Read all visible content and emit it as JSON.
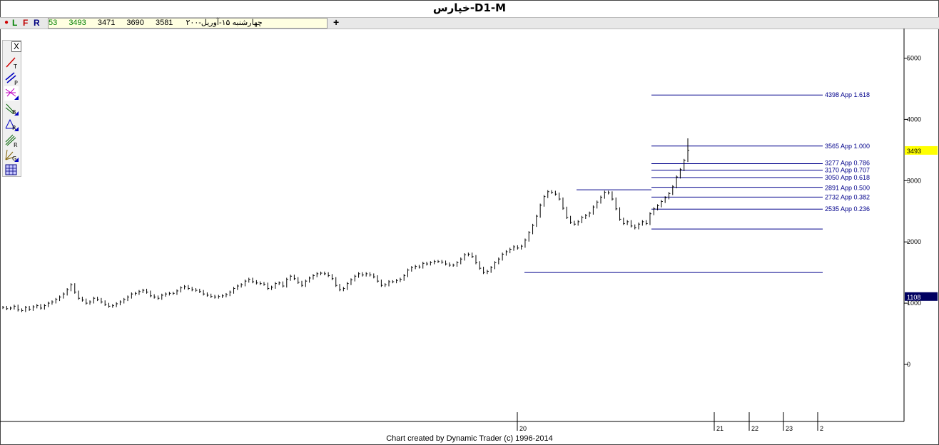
{
  "window": {
    "title": "خپارس-D1-M"
  },
  "infobar": {
    "btn_l": "L",
    "btn_f": "F",
    "btn_r": "R",
    "date": "چهارشنبه ۱۵-آوریل-۲۰۰",
    "open": "3581",
    "high": "3690",
    "low": "3471",
    "close": "3493",
    "volume": "53",
    "add": "+"
  },
  "toolbar": {
    "close_label": "X",
    "tools": [
      "trendline-tool-icon",
      "parallel-tool-icon",
      "p-tool-icon",
      "b-tool-icon",
      "r-tool-icon",
      "retracement-tool-icon",
      "gann-tool-icon",
      "pt-tool-icon"
    ]
  },
  "footer": {
    "credit": "Chart created by Dynamic Trader  (c) 1996-2014"
  },
  "colors": {
    "level_line": "#00008b",
    "price_bar": "#000000",
    "current_price_bg": "#ffff00",
    "marker_price_bg": "#000060"
  },
  "chart_data": {
    "type": "bar",
    "title": "خپارس-D1-M",
    "y_ticks": [
      5000,
      4000,
      3000,
      2000,
      1000,
      0
    ],
    "ylim": [
      -900,
      5500
    ],
    "x_ticks": [
      "20",
      "21",
      "22",
      "23",
      "2"
    ],
    "current_price": "3493",
    "marker_price": "1108",
    "levels": [
      {
        "value": 4398,
        "label": "4398 App 1.618"
      },
      {
        "value": 3565,
        "label": "3565 App 1.000"
      },
      {
        "value": 3277,
        "label": "3277 App 0.786"
      },
      {
        "value": 3170,
        "label": "3170 App 0.707"
      },
      {
        "value": 3050,
        "label": "3050 App 0.618"
      },
      {
        "value": 2891,
        "label": "2891 App 0.500"
      },
      {
        "value": 2732,
        "label": "2732 App 0.382"
      },
      {
        "value": 2535,
        "label": "2535 App 0.236"
      }
    ],
    "support_lines": [
      {
        "value": 2850
      },
      {
        "value": 2210
      },
      {
        "value": 1500
      }
    ],
    "closes": [
      930,
      910,
      920,
      950,
      890,
      880,
      930,
      900,
      940,
      960,
      920,
      960,
      1000,
      1020,
      1060,
      1100,
      1150,
      1220,
      1300,
      1180,
      1080,
      1050,
      1000,
      1020,
      1080,
      1060,
      1020,
      980,
      950,
      960,
      990,
      1020,
      1060,
      1100,
      1150,
      1160,
      1190,
      1210,
      1180,
      1120,
      1100,
      1080,
      1130,
      1150,
      1160,
      1160,
      1200,
      1250,
      1270,
      1240,
      1220,
      1210,
      1190,
      1150,
      1130,
      1110,
      1100,
      1110,
      1120,
      1140,
      1180,
      1240,
      1280,
      1300,
      1360,
      1390,
      1350,
      1330,
      1320,
      1310,
      1240,
      1260,
      1320,
      1330,
      1280,
      1390,
      1440,
      1400,
      1340,
      1290,
      1360,
      1410,
      1450,
      1480,
      1490,
      1480,
      1450,
      1400,
      1290,
      1220,
      1240,
      1320,
      1380,
      1440,
      1480,
      1460,
      1480,
      1460,
      1430,
      1360,
      1290,
      1300,
      1350,
      1350,
      1370,
      1390,
      1450,
      1540,
      1580,
      1600,
      1590,
      1650,
      1640,
      1660,
      1680,
      1680,
      1670,
      1640,
      1620,
      1620,
      1660,
      1720,
      1790,
      1800,
      1760,
      1660,
      1570,
      1500,
      1520,
      1580,
      1660,
      1720,
      1800,
      1840,
      1880,
      1920,
      1900,
      1930,
      2030,
      2150,
      2270,
      2420,
      2600,
      2740,
      2820,
      2810,
      2780,
      2700,
      2550,
      2400,
      2320,
      2290,
      2330,
      2400,
      2430,
      2470,
      2570,
      2650,
      2730,
      2810,
      2800,
      2700,
      2540,
      2370,
      2300,
      2330,
      2260,
      2230,
      2290,
      2330,
      2300,
      2460,
      2540,
      2590,
      2660,
      2720,
      2790,
      2900,
      3060,
      3180,
      3330,
      3493
    ]
  }
}
